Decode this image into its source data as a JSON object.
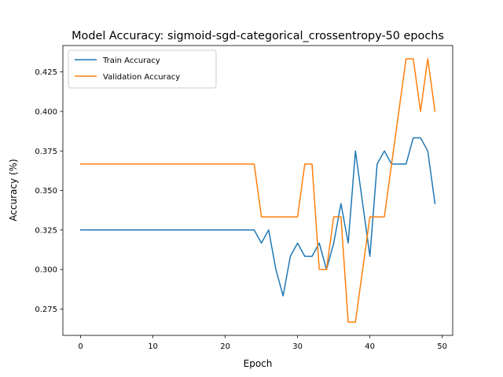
{
  "chart_data": {
    "type": "line",
    "title": "Model Accuracy: sigmoid-sgd-categorical_crossentropy-50 epochs",
    "xlabel": "Epoch",
    "ylabel": "Accuracy (%)",
    "xlim": [
      -2.45,
      51.45
    ],
    "ylim": [
      0.2583,
      0.4417
    ],
    "xticks": [
      0,
      10,
      20,
      30,
      40,
      50
    ],
    "yticks": [
      0.275,
      0.3,
      0.325,
      0.35,
      0.375,
      0.4,
      0.425
    ],
    "xtick_labels": [
      "0",
      "10",
      "20",
      "30",
      "40",
      "50"
    ],
    "ytick_labels": [
      "0.275",
      "0.300",
      "0.325",
      "0.350",
      "0.375",
      "0.400",
      "0.425"
    ],
    "grid": false,
    "legend_position": "top-left",
    "x": [
      0,
      1,
      2,
      3,
      4,
      5,
      6,
      7,
      8,
      9,
      10,
      11,
      12,
      13,
      14,
      15,
      16,
      17,
      18,
      19,
      20,
      21,
      22,
      23,
      24,
      25,
      26,
      27,
      28,
      29,
      30,
      31,
      32,
      33,
      34,
      35,
      36,
      37,
      38,
      39,
      40,
      41,
      42,
      43,
      44,
      45,
      46,
      47,
      48,
      49
    ],
    "series": [
      {
        "name": "Train Accuracy",
        "color": "#1f77b4",
        "values": [
          0.325,
          0.325,
          0.325,
          0.325,
          0.325,
          0.325,
          0.325,
          0.325,
          0.325,
          0.325,
          0.325,
          0.325,
          0.325,
          0.325,
          0.325,
          0.325,
          0.325,
          0.325,
          0.325,
          0.325,
          0.325,
          0.325,
          0.325,
          0.325,
          0.325,
          0.3167,
          0.325,
          0.3,
          0.2833,
          0.3083,
          0.3167,
          0.3083,
          0.3083,
          0.3167,
          0.3,
          0.3167,
          0.3417,
          0.3167,
          0.375,
          0.3417,
          0.3083,
          0.3667,
          0.375,
          0.3667,
          0.3667,
          0.3667,
          0.3833,
          0.3833,
          0.375,
          0.3417
        ]
      },
      {
        "name": "Validation Accuracy",
        "color": "#ff7f0e",
        "values": [
          0.3667,
          0.3667,
          0.3667,
          0.3667,
          0.3667,
          0.3667,
          0.3667,
          0.3667,
          0.3667,
          0.3667,
          0.3667,
          0.3667,
          0.3667,
          0.3667,
          0.3667,
          0.3667,
          0.3667,
          0.3667,
          0.3667,
          0.3667,
          0.3667,
          0.3667,
          0.3667,
          0.3667,
          0.3667,
          0.3333,
          0.3333,
          0.3333,
          0.3333,
          0.3333,
          0.3333,
          0.3667,
          0.3667,
          0.3,
          0.3,
          0.3333,
          0.3333,
          0.2667,
          0.2667,
          0.3,
          0.3333,
          0.3333,
          0.3333,
          0.3667,
          0.4,
          0.4333,
          0.4333,
          0.4,
          0.4333,
          0.4
        ]
      }
    ]
  }
}
